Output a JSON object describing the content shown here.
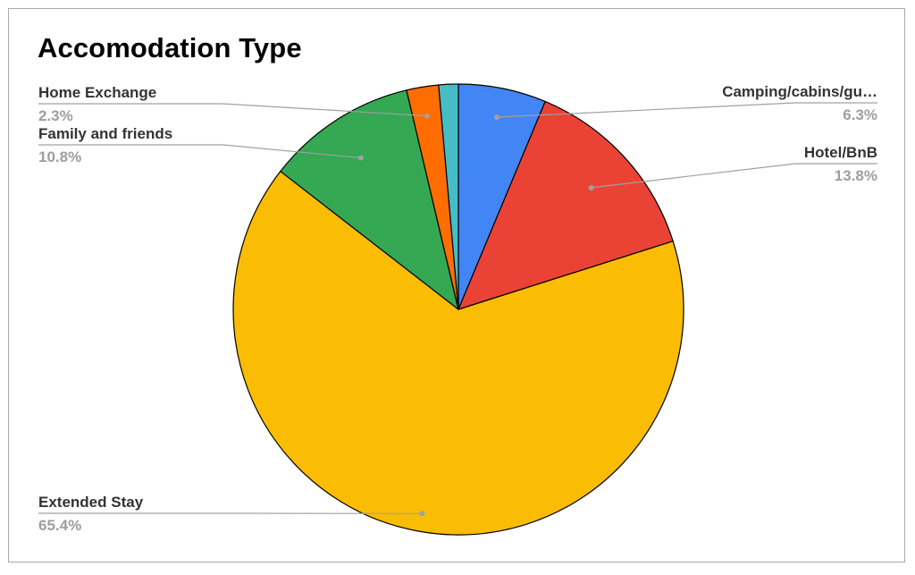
{
  "chart_data": {
    "type": "pie",
    "title": "Accomodation Type",
    "slices": [
      {
        "label": "Camping/cabins/gu…",
        "value": 6.3,
        "display": "6.3%",
        "color": "#4285f4"
      },
      {
        "label": "Hotel/BnB",
        "value": 13.8,
        "display": "13.8%",
        "color": "#ea4335"
      },
      {
        "label": "Extended Stay",
        "value": 65.4,
        "display": "65.4%",
        "color": "#fbbc04"
      },
      {
        "label": "Family and friends",
        "value": 10.8,
        "display": "10.8%",
        "color": "#34a853"
      },
      {
        "label": "Home Exchange",
        "value": 2.3,
        "display": "2.3%",
        "color": "#ff6d01"
      },
      {
        "label": "",
        "value": 1.4,
        "display": "",
        "color": "#46bdc6"
      }
    ]
  }
}
